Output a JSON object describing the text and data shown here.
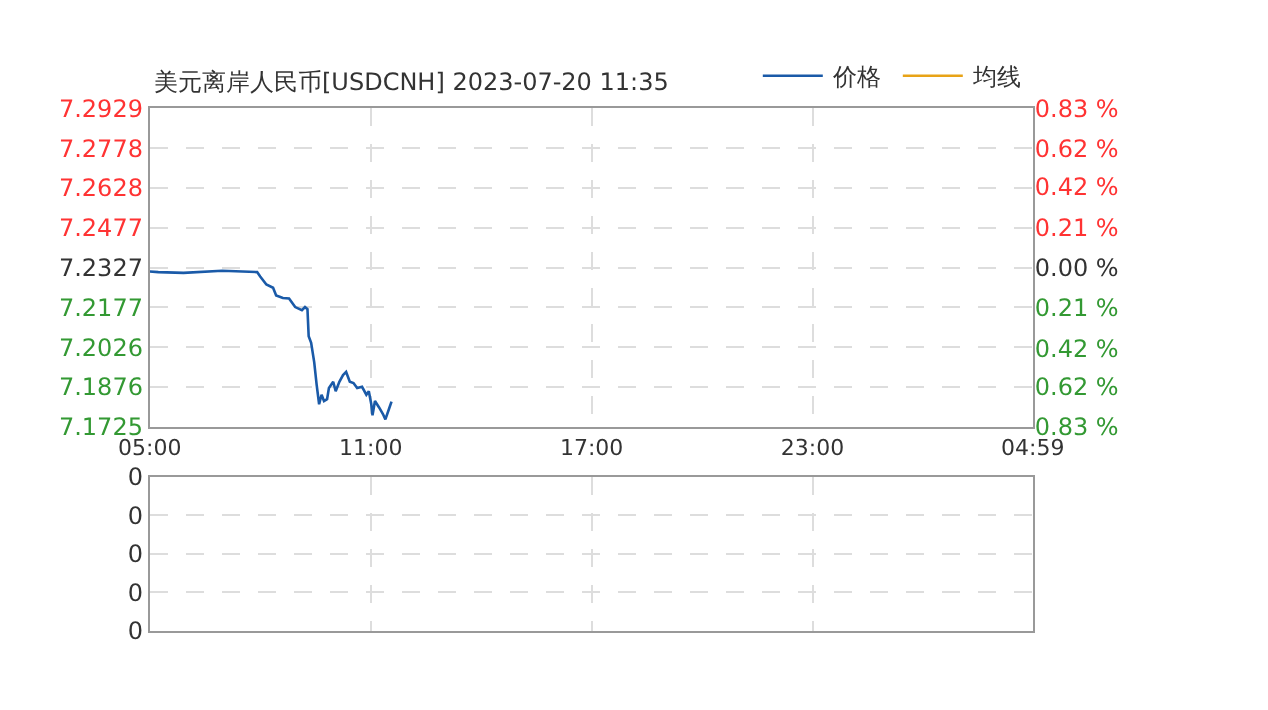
{
  "chart_data": [
    {
      "type": "line",
      "title": "美元离岸人民币[USDCNH] 2023-07-20 11:35",
      "legend": "top right",
      "grid": true,
      "marker": "none",
      "line_style": "solid",
      "xlim": [
        "2023-07-20T05:00",
        "2023-07-21T04:59"
      ],
      "xticks": [
        {
          "value": "2023-07-20T05:00",
          "label": "05:00"
        },
        {
          "value": "2023-07-20T11:00",
          "label": "11:00"
        },
        {
          "value": "2023-07-20T17:00",
          "label": "17:00"
        },
        {
          "value": "2023-07-20T23:00",
          "label": "23:00"
        },
        {
          "value": "2023-07-21T04:59",
          "label": "04:59"
        }
      ],
      "ylim": [
        7.1725,
        7.2929
      ],
      "yticks": [
        7.1725,
        7.1876,
        7.2026,
        7.2177,
        7.2327,
        7.2477,
        7.2628,
        7.2778,
        7.2929
      ],
      "y2lim": [
        -0.83,
        0.83
      ],
      "y2ticks": [
        {
          "value": -0.83,
          "label": "0.83 %"
        },
        {
          "value": -0.62,
          "label": "0.62 %"
        },
        {
          "value": -0.42,
          "label": "0.42 %"
        },
        {
          "value": -0.21,
          "label": "0.21 %"
        },
        {
          "value": 0,
          "label": "0.00 %"
        },
        {
          "value": 0.21,
          "label": "0.21 %"
        },
        {
          "value": 0.42,
          "label": "0.42 %"
        },
        {
          "value": 0.62,
          "label": "0.62 %"
        },
        {
          "value": 0.83,
          "label": "0.83 %"
        }
      ],
      "series": [
        {
          "name": "价格",
          "color": "#1a5aa8",
          "x": [
            "2023-07-20T05:00",
            "2023-07-20T05:14",
            "2023-07-20T05:55",
            "2023-07-20T06:58",
            "2023-07-20T07:55",
            "2023-07-20T08:00",
            "2023-07-20T08:10",
            "2023-07-20T08:21",
            "2023-07-20T08:26",
            "2023-07-20T08:37",
            "2023-07-20T08:47",
            "2023-07-20T08:57",
            "2023-07-20T09:08",
            "2023-07-20T09:13",
            "2023-07-20T09:17",
            "2023-07-20T09:19",
            "2023-07-20T09:23",
            "2023-07-20T09:28",
            "2023-07-20T09:32",
            "2023-07-20T09:36",
            "2023-07-20T09:40",
            "2023-07-20T09:44",
            "2023-07-20T09:49",
            "2023-07-20T09:52",
            "2023-07-20T09:59",
            "2023-07-20T10:03",
            "2023-07-20T10:09",
            "2023-07-20T10:15",
            "2023-07-20T10:20",
            "2023-07-20T10:26",
            "2023-07-20T10:32",
            "2023-07-20T10:38",
            "2023-07-20T10:46",
            "2023-07-20T10:53",
            "2023-07-20T10:57",
            "2023-07-20T11:01",
            "2023-07-20T11:03",
            "2023-07-20T11:07",
            "2023-07-20T11:14",
            "2023-07-20T11:20",
            "2023-07-20T11:24",
            "2023-07-20T11:30",
            "2023-07-20T11:34"
          ],
          "values": [
            7.2312,
            7.231,
            7.2307,
            7.2315,
            7.231,
            7.2293,
            7.2263,
            7.2251,
            7.2222,
            7.2212,
            7.221,
            7.2178,
            7.2166,
            7.2178,
            7.217,
            7.2068,
            7.2043,
            7.197,
            7.1884,
            7.1811,
            7.1847,
            7.1823,
            7.183,
            7.1872,
            7.1896,
            7.186,
            7.1896,
            7.1921,
            7.1933,
            7.1896,
            7.1891,
            7.1872,
            7.1877,
            7.1847,
            7.186,
            7.1811,
            7.1769,
            7.1823,
            7.1798,
            7.1774,
            7.1754,
            7.1794,
            7.1821
          ]
        },
        {
          "name": "均线",
          "color": "#e8a317",
          "values": [
            null
          ]
        }
      ]
    },
    {
      "type": "bar",
      "orientation": "horizontal",
      "grid": true,
      "tick_labels": "y",
      "categories": [
        "0",
        "0",
        "0",
        "0",
        "0"
      ],
      "xlim": [
        "2023-07-20T05:00",
        "2023-07-21T04:59"
      ],
      "xticks": [
        "2023-07-20T05:00",
        "2023-07-20T11:00",
        "2023-07-20T17:00",
        "2023-07-20T23:00",
        "2023-07-21T04:59"
      ],
      "values": [
        null,
        null,
        null,
        null,
        null
      ]
    }
  ]
}
